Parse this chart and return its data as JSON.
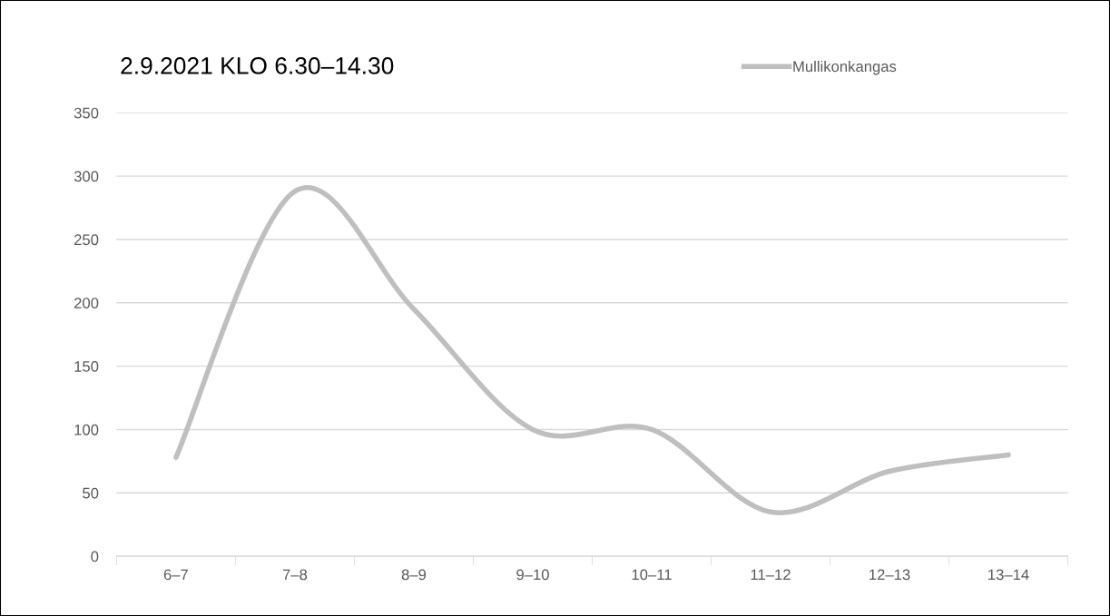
{
  "chart_data": {
    "type": "line",
    "title": "2.9.2021 KLO 6.30–14.30",
    "categories": [
      "6–7",
      "7–8",
      "8–9",
      "9–10",
      "10–11",
      "11–12",
      "12–13",
      "13–14"
    ],
    "series": [
      {
        "name": "Mullikonkangas",
        "color": "#bfbfbf",
        "values": [
          78,
          288,
          195,
          100,
          100,
          35,
          67,
          80
        ]
      }
    ],
    "ylim": [
      0,
      350
    ],
    "yticks": [
      0,
      50,
      100,
      150,
      200,
      250,
      300,
      350
    ],
    "grid": "y",
    "legend": "top right",
    "marker": "none",
    "line_style": "solid"
  }
}
